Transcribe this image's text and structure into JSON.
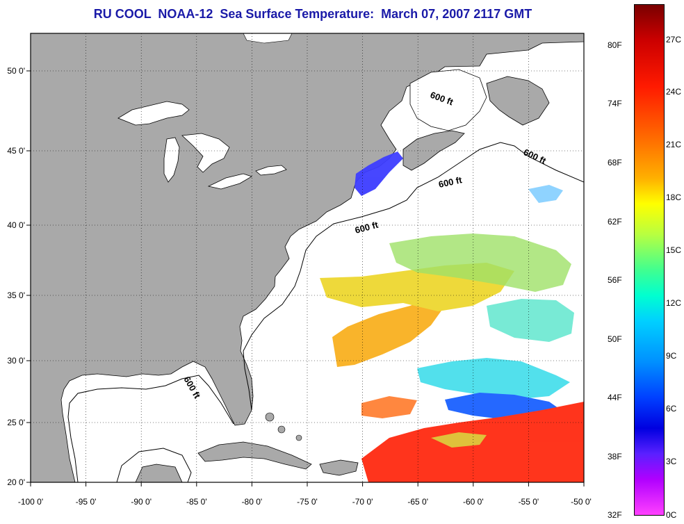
{
  "title": "RU COOL  NOAA-12  Sea Surface Temperature:  March 07, 2007 2117 GMT",
  "axes": {
    "lon_ticks": [
      "-100 0'",
      "-95 0'",
      "-90 0'",
      "-85 0'",
      "-80 0'",
      "-75 0'",
      "-70 0'",
      "-65 0'",
      "-60 0'",
      "-55 0'",
      "-50 0'"
    ],
    "lat_ticks": [
      "50 0'",
      "45 0'",
      "40 0'",
      "35 0'",
      "30 0'",
      "25 0'",
      "20 0'"
    ]
  },
  "contour_labels": [
    "600 ft",
    "600 ft",
    "600 ft",
    "600 ft",
    "600 ft"
  ],
  "colorbar": {
    "fahrenheit": [
      "80F",
      "74F",
      "68F",
      "62F",
      "56F",
      "50F",
      "44F",
      "38F",
      "32F"
    ],
    "celsius": [
      "27C",
      "24C",
      "21C",
      "18C",
      "15C",
      "12C",
      "9C",
      "6C",
      "3C",
      "0C"
    ]
  },
  "colors": {
    "land": "#a9a9a9",
    "title": "#1a1aa8"
  }
}
